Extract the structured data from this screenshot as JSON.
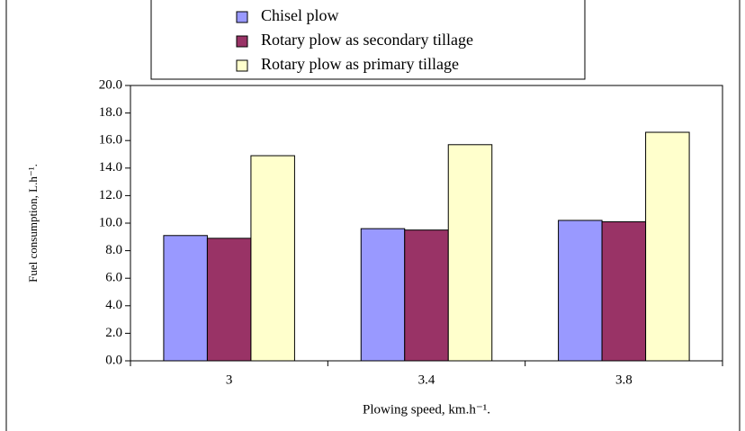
{
  "chart_data": {
    "type": "bar",
    "xlabel": "Plowing speed, km.h⁻¹.",
    "ylabel": "Fuel consumption, L.h⁻¹.",
    "categories": [
      "3",
      "3.4",
      "3.8"
    ],
    "series": [
      {
        "name": "Chisel plow",
        "color": "#9999ff",
        "values": [
          9.1,
          9.6,
          10.2
        ]
      },
      {
        "name": "Rotary plow as secondary tillage",
        "color": "#993366",
        "values": [
          8.9,
          9.5,
          10.1
        ]
      },
      {
        "name": "Rotary plow as primary tillage",
        "color": "#ffffcc",
        "values": [
          14.9,
          15.7,
          16.6
        ]
      }
    ],
    "ylim": [
      0,
      20
    ],
    "yticks": [
      {
        "value": 0,
        "label": "0.0"
      },
      {
        "value": 2,
        "label": "2.0"
      },
      {
        "value": 4,
        "label": "4.0"
      },
      {
        "value": 6,
        "label": "6.0"
      },
      {
        "value": 8,
        "label": "8.0"
      },
      {
        "value": 10,
        "label": "10.0"
      },
      {
        "value": 12,
        "label": "12.0"
      },
      {
        "value": 14,
        "label": "14.0"
      },
      {
        "value": 16,
        "label": "16.0"
      },
      {
        "value": 18,
        "label": "18.0"
      },
      {
        "value": 20,
        "label": "20.0"
      }
    ],
    "grid": false,
    "legend": "top"
  }
}
